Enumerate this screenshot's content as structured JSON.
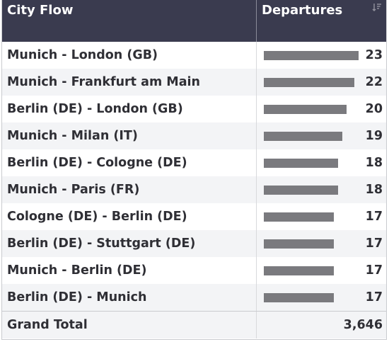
{
  "header": {
    "col_city_flow": "City Flow",
    "col_departures": "Departures",
    "sort_icon": "sort-icon"
  },
  "rows": [
    {
      "city_flow": "Munich - London (GB)",
      "departures": "23"
    },
    {
      "city_flow": "Munich - Frankfurt am Main",
      "departures": "22"
    },
    {
      "city_flow": "Berlin (DE) - London (GB)",
      "departures": "20"
    },
    {
      "city_flow": "Munich - Milan (IT)",
      "departures": "19"
    },
    {
      "city_flow": "Berlin (DE) - Cologne (DE)",
      "departures": "18"
    },
    {
      "city_flow": "Munich - Paris (FR)",
      "departures": "18"
    },
    {
      "city_flow": "Cologne (DE) - Berlin (DE)",
      "departures": "17"
    },
    {
      "city_flow": "Berlin (DE) - Stuttgart (DE)",
      "departures": "17"
    },
    {
      "city_flow": "Munich - Berlin (DE)",
      "departures": "17"
    },
    {
      "city_flow": "Berlin (DE) - Munich",
      "departures": "17"
    }
  ],
  "total": {
    "label": "Grand Total",
    "value": "3,646"
  },
  "colors": {
    "header_bg": "#3a3b4f",
    "bar": "#7a7a7e"
  }
}
